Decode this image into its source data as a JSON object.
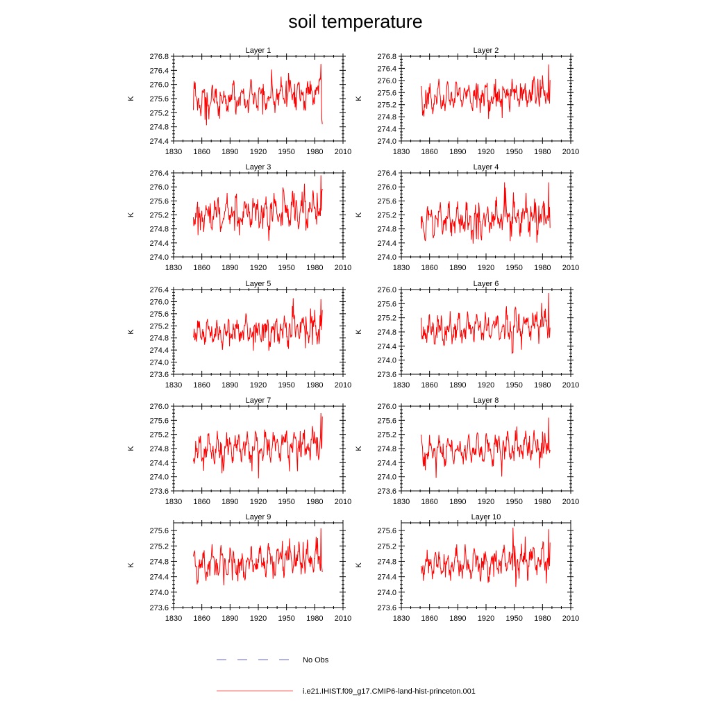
{
  "figure": {
    "title": "soil temperature",
    "legend": [
      {
        "label": "No Obs",
        "color": "#6666cc",
        "style": "dashed"
      },
      {
        "label": "i.e21.IHIST.f09_g17.CMIP6-land-hist-princeton.001",
        "color": "#ff6666",
        "style": "solid"
      }
    ]
  },
  "chart_data": [
    {
      "type": "line",
      "title": "Layer 1",
      "ylabel": "K",
      "xlim": [
        1830,
        2010
      ],
      "ylim": [
        274.4,
        276.8
      ],
      "xticks": [
        1830,
        1860,
        1890,
        1920,
        1950,
        1980,
        2010
      ],
      "yticks": [
        274.4,
        274.8,
        275.2,
        275.6,
        276.0,
        276.4,
        276.8
      ],
      "x_start": 1851,
      "x_end": 1988,
      "base": 275.55,
      "amp": 0.38,
      "trend": 0.18,
      "spike": 0.55,
      "seed": 3,
      "color": "#ff0000"
    },
    {
      "type": "line",
      "title": "Layer 2",
      "ylabel": "K",
      "xlim": [
        1830,
        2010
      ],
      "ylim": [
        274.0,
        276.8
      ],
      "xticks": [
        1830,
        1860,
        1890,
        1920,
        1950,
        1980,
        2010
      ],
      "yticks": [
        274.0,
        274.4,
        274.8,
        275.2,
        275.6,
        276.0,
        276.4,
        276.8
      ],
      "x_start": 1851,
      "x_end": 1988,
      "base": 275.4,
      "amp": 0.42,
      "trend": 0.2,
      "spike": 0.6,
      "seed": 5,
      "color": "#ff0000"
    },
    {
      "type": "line",
      "title": "Layer 3",
      "ylabel": "K",
      "xlim": [
        1830,
        2010
      ],
      "ylim": [
        274.0,
        276.4
      ],
      "xticks": [
        1830,
        1860,
        1890,
        1920,
        1950,
        1980,
        2010
      ],
      "yticks": [
        274.0,
        274.4,
        274.8,
        275.2,
        275.6,
        276.0,
        276.4
      ],
      "x_start": 1851,
      "x_end": 1988,
      "base": 275.2,
      "amp": 0.42,
      "trend": 0.2,
      "spike": 0.6,
      "seed": 7,
      "color": "#ff0000"
    },
    {
      "type": "line",
      "title": "Layer 4",
      "ylabel": "K",
      "xlim": [
        1830,
        2010
      ],
      "ylim": [
        274.0,
        276.4
      ],
      "xticks": [
        1830,
        1860,
        1890,
        1920,
        1950,
        1980,
        2010
      ],
      "yticks": [
        274.0,
        274.4,
        274.8,
        275.2,
        275.6,
        276.0,
        276.4
      ],
      "x_start": 1851,
      "x_end": 1988,
      "base": 275.0,
      "amp": 0.42,
      "trend": 0.2,
      "spike": 0.6,
      "seed": 11,
      "color": "#ff0000"
    },
    {
      "type": "line",
      "title": "Layer 5",
      "ylabel": "K",
      "xlim": [
        1830,
        2010
      ],
      "ylim": [
        273.6,
        276.4
      ],
      "xticks": [
        1830,
        1860,
        1890,
        1920,
        1950,
        1980,
        2010
      ],
      "yticks": [
        273.6,
        274.0,
        274.4,
        274.8,
        275.2,
        275.6,
        276.0,
        276.4
      ],
      "x_start": 1851,
      "x_end": 1988,
      "base": 274.95,
      "amp": 0.4,
      "trend": 0.2,
      "spike": 0.6,
      "seed": 13,
      "color": "#ff0000"
    },
    {
      "type": "line",
      "title": "Layer 6",
      "ylabel": "K",
      "xlim": [
        1830,
        2010
      ],
      "ylim": [
        273.6,
        276.0
      ],
      "xticks": [
        1830,
        1860,
        1890,
        1920,
        1950,
        1980,
        2010
      ],
      "yticks": [
        273.6,
        274.0,
        274.4,
        274.8,
        275.2,
        275.6,
        276.0
      ],
      "x_start": 1851,
      "x_end": 1988,
      "base": 274.85,
      "amp": 0.38,
      "trend": 0.2,
      "spike": 0.55,
      "seed": 17,
      "color": "#ff0000"
    },
    {
      "type": "line",
      "title": "Layer 7",
      "ylabel": "K",
      "xlim": [
        1830,
        2010
      ],
      "ylim": [
        273.6,
        276.0
      ],
      "xticks": [
        1830,
        1860,
        1890,
        1920,
        1950,
        1980,
        2010
      ],
      "yticks": [
        273.6,
        274.0,
        274.4,
        274.8,
        275.2,
        275.6,
        276.0
      ],
      "x_start": 1851,
      "x_end": 1988,
      "base": 274.75,
      "amp": 0.38,
      "trend": 0.2,
      "spike": 0.55,
      "seed": 19,
      "color": "#ff0000"
    },
    {
      "type": "line",
      "title": "Layer 8",
      "ylabel": "K",
      "xlim": [
        1830,
        2010
      ],
      "ylim": [
        273.6,
        276.0
      ],
      "xticks": [
        1830,
        1860,
        1890,
        1920,
        1950,
        1980,
        2010
      ],
      "yticks": [
        273.6,
        274.0,
        274.4,
        274.8,
        275.2,
        275.6,
        276.0
      ],
      "x_start": 1851,
      "x_end": 1988,
      "base": 274.7,
      "amp": 0.36,
      "trend": 0.2,
      "spike": 0.5,
      "seed": 23,
      "color": "#ff0000"
    },
    {
      "type": "line",
      "title": "Layer 9",
      "ylabel": "K",
      "xlim": [
        1830,
        2010
      ],
      "ylim": [
        273.6,
        275.8
      ],
      "xticks": [
        1830,
        1860,
        1890,
        1920,
        1950,
        1980,
        2010
      ],
      "yticks": [
        273.6,
        274.0,
        274.4,
        274.8,
        275.2,
        275.6
      ],
      "x_start": 1851,
      "x_end": 1988,
      "base": 274.7,
      "amp": 0.35,
      "trend": 0.18,
      "spike": 0.5,
      "seed": 29,
      "color": "#ff0000"
    },
    {
      "type": "line",
      "title": "Layer 10",
      "ylabel": "K",
      "xlim": [
        1830,
        2010
      ],
      "ylim": [
        273.6,
        275.8
      ],
      "xticks": [
        1830,
        1860,
        1890,
        1920,
        1950,
        1980,
        2010
      ],
      "yticks": [
        273.6,
        274.0,
        274.4,
        274.8,
        275.2,
        275.6
      ],
      "x_start": 1851,
      "x_end": 1988,
      "base": 274.68,
      "amp": 0.35,
      "trend": 0.18,
      "spike": 0.5,
      "seed": 31,
      "color": "#ff0000"
    }
  ]
}
